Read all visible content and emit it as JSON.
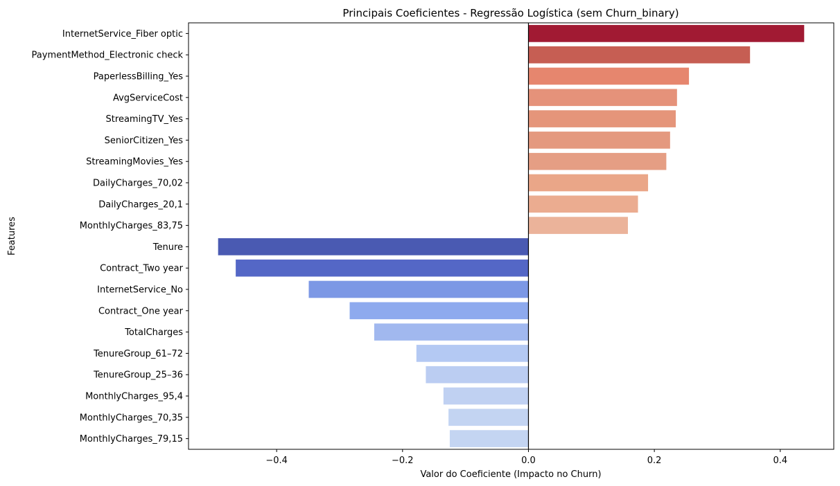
{
  "chart_data": {
    "type": "bar",
    "orientation": "horizontal",
    "title": "Principais Coeficientes - Regressão Logística (sem Churn_binary)",
    "xlabel": "Valor do Coeficiente (Impacto no Churn)",
    "ylabel": "Features",
    "xlim": [
      -0.54,
      0.485
    ],
    "xticks": [
      -0.4,
      -0.2,
      0.0,
      0.2,
      0.4
    ],
    "xtick_labels": [
      "−0.4",
      "−0.2",
      "0.0",
      "0.2",
      "0.4"
    ],
    "grid": false,
    "legend": "none",
    "zero_line": true,
    "categories": [
      "InternetService_Fiber optic",
      "PaymentMethod_Electronic check",
      "PaperlessBilling_Yes",
      "AvgServiceCost",
      "StreamingTV_Yes",
      "SeniorCitizen_Yes",
      "StreamingMovies_Yes",
      "DailyCharges_70,02",
      "DailyCharges_20,1",
      "MonthlyCharges_83,75",
      "Tenure",
      "Contract_Two year",
      "InternetService_No",
      "Contract_One year",
      "TotalCharges",
      "TenureGroup_61–72",
      "TenureGroup_25–36",
      "MonthlyCharges_95,4",
      "MonthlyCharges_70,35",
      "MonthlyCharges_79,15"
    ],
    "values": [
      0.438,
      0.352,
      0.255,
      0.236,
      0.234,
      0.225,
      0.219,
      0.19,
      0.174,
      0.158,
      -0.493,
      -0.465,
      -0.349,
      -0.284,
      -0.245,
      -0.178,
      -0.163,
      -0.135,
      -0.127,
      -0.125
    ],
    "colors": [
      "#a11a33",
      "#c65e53",
      "#e6866e",
      "#e5927a",
      "#e5957a",
      "#e4997f",
      "#e59e84",
      "#eaa688",
      "#ebac90",
      "#ebb39a",
      "#4a5ab2",
      "#5467c6",
      "#7c98e5",
      "#8eaaee",
      "#a1b8ef",
      "#b4c9f3",
      "#bbcdf2",
      "#c0d1f2",
      "#c3d4f2",
      "#c4d5f2"
    ]
  }
}
